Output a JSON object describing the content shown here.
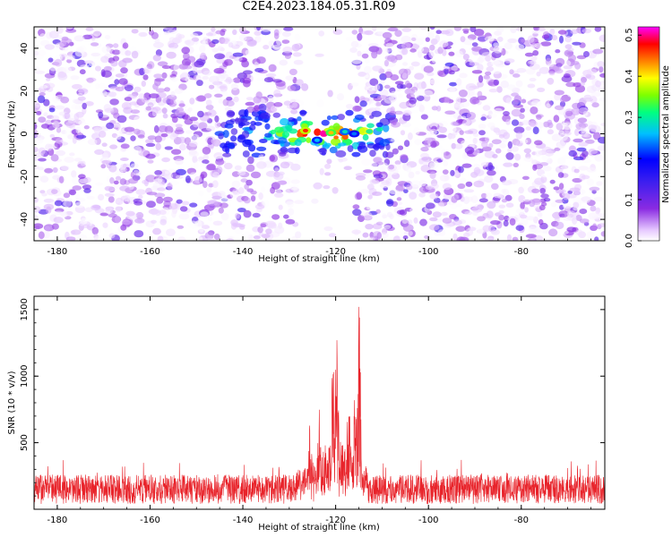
{
  "title": "C2E4.2023.184.05.31.R09",
  "colors": {
    "line_series": "#e8232a",
    "colormap": [
      "#ffffff",
      "#e6c8ff",
      "#8a2be2",
      "#3a1ef0",
      "#0000ff",
      "#00bfff",
      "#00ff80",
      "#7cff00",
      "#ffff00",
      "#ff8000",
      "#ff0000",
      "#ff00ff"
    ]
  },
  "chart_data": [
    {
      "type": "heatmap",
      "title": "",
      "xlabel": "Height of straight line (km)",
      "ylabel": "Frequency (Hz)",
      "xlim": [
        -185,
        -62
      ],
      "ylim": [
        -50,
        50
      ],
      "xticks": [
        -180,
        -160,
        -140,
        -120,
        -100,
        -80
      ],
      "yticks": [
        -40,
        -20,
        0,
        20,
        40
      ],
      "grid": false,
      "colorbar": {
        "label": "Normalized spectral amplitude",
        "range": [
          0.0,
          0.52
        ],
        "ticks": [
          0.0,
          0.1,
          0.2,
          0.3,
          0.4,
          0.5
        ]
      },
      "features": {
        "blank_band_x": [
          -128,
          -116
        ],
        "hotspot_center": {
          "x": -122,
          "y": 0
        },
        "hotspot_extent_x": [
          -145,
          -108
        ],
        "hotspot_extent_y": [
          -10,
          10
        ],
        "peak_amplitude": 0.52,
        "background_amplitude": 0.1
      }
    },
    {
      "type": "line",
      "title": "",
      "xlabel": "Height of straight line (km)",
      "ylabel": "SNR (10 * v/v)",
      "xlim": [
        -185,
        -62
      ],
      "ylim": [
        0,
        1600
      ],
      "xticks": [
        -180,
        -160,
        -140,
        -120,
        -100,
        -80
      ],
      "yticks": [
        500,
        1000,
        1500
      ],
      "grid": false,
      "series": [
        {
          "x_range": [
            -185,
            -62
          ],
          "baseline_mean": 150,
          "baseline_max": 320,
          "peaks": [
            {
              "x": -125.5,
              "y": 680
            },
            {
              "x": -123.5,
              "y": 780
            },
            {
              "x": -120.5,
              "y": 1280
            },
            {
              "x": -119.8,
              "y": 1360
            },
            {
              "x": -117.2,
              "y": 1150
            },
            {
              "x": -115.8,
              "y": 880
            },
            {
              "x": -115.0,
              "y": 1600
            }
          ]
        }
      ]
    }
  ]
}
